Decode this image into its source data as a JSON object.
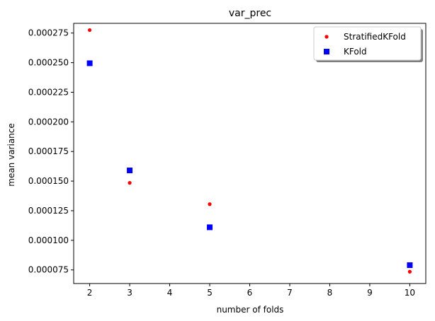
{
  "chart_data": {
    "type": "scatter",
    "title": "var_prec",
    "xlabel": "number of folds",
    "ylabel": "mean variance",
    "xlim": [
      1.6,
      10.4
    ],
    "ylim": [
      6.35e-05,
      0.0002832
    ],
    "xticks": [
      2,
      3,
      4,
      5,
      6,
      7,
      8,
      9,
      10
    ],
    "yticks": [
      7.5e-05,
      0.0001,
      0.000125,
      0.00015,
      0.000175,
      0.0002,
      0.000225,
      0.00025,
      0.000275
    ],
    "ytick_labels": [
      "0.000075",
      "0.000100",
      "0.000125",
      "0.000150",
      "0.000175",
      "0.000200",
      "0.000225",
      "0.000250",
      "0.000275"
    ],
    "grid": false,
    "legend_position": "top-right",
    "series": [
      {
        "name": "StratifiedKFold",
        "marker": "circle",
        "color": "#ff0000",
        "points": [
          {
            "x": 2,
            "y": 0.0002775
          },
          {
            "x": 3,
            "y": 0.0001485
          },
          {
            "x": 5,
            "y": 0.0001305
          },
          {
            "x": 10,
            "y": 7.35e-05
          }
        ]
      },
      {
        "name": "KFold",
        "marker": "square",
        "color": "#0000ff",
        "points": [
          {
            "x": 2,
            "y": 0.0002495
          },
          {
            "x": 3,
            "y": 0.000159
          },
          {
            "x": 5,
            "y": 0.000111
          },
          {
            "x": 10,
            "y": 7.9e-05
          }
        ]
      }
    ]
  }
}
